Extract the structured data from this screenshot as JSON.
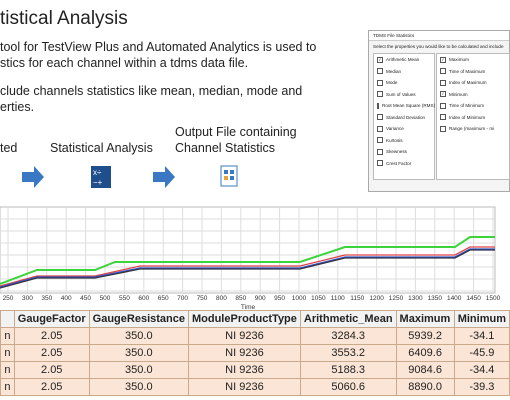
{
  "header": {
    "title": "tistical Analysis"
  },
  "body": [
    "tool for TestView Plus and Automated Analytics is used to",
    "stics for each channel within a tdms data file.",
    "clude channels statistics like mean, median, mode and",
    "erties."
  ],
  "flow": {
    "step1": "ted",
    "step2": "Statistical Analysis",
    "step3": [
      "Output File containing",
      "Channel Statistics"
    ]
  },
  "dialog": {
    "title": "TDMS File Statistics",
    "prompt": "Select the properties you would like to be calculated and include",
    "left": [
      {
        "label": "Arithmetic Mean",
        "checked": true
      },
      {
        "label": "Median",
        "checked": false
      },
      {
        "label": "Mode",
        "checked": false
      },
      {
        "label": "Sum of Values",
        "checked": false
      },
      {
        "label": "Root Mean Square (RMS)",
        "checked": false
      },
      {
        "label": "Standard Deviation",
        "checked": false
      },
      {
        "label": "Variance",
        "checked": false
      },
      {
        "label": "Kurtosis",
        "checked": false
      },
      {
        "label": "Skewness",
        "checked": false
      },
      {
        "label": "Crest Factor",
        "checked": false
      }
    ],
    "right": [
      {
        "label": "Maximum",
        "checked": true
      },
      {
        "label": "Time of Maximum",
        "checked": false
      },
      {
        "label": "Index of Maximum",
        "checked": false
      },
      {
        "label": "Minimum",
        "checked": true
      },
      {
        "label": "Time of Minimum",
        "checked": false
      },
      {
        "label": "Index of Minimum",
        "checked": false
      },
      {
        "label": "Range (maximum - mi",
        "checked": false
      }
    ]
  },
  "chart": {
    "xlabel": "Time",
    "xticks": [
      250,
      300,
      350,
      400,
      450,
      500,
      550,
      600,
      650,
      700,
      750,
      800,
      850,
      900,
      950,
      1000,
      1050,
      1100,
      1150,
      1200,
      1250,
      1300,
      1350,
      1400,
      1450,
      1500
    ]
  },
  "table": {
    "columns": [
      "GaugeFactor",
      "GaugeResistance",
      "ModuleProductType",
      "Arithmetic_Mean",
      "Maximum",
      "Minimum"
    ],
    "rows": [
      [
        "n",
        "2.05",
        "350.0",
        "NI 9236",
        "3284.3",
        "5939.2",
        "-34.1"
      ],
      [
        "n",
        "2.05",
        "350.0",
        "NI 9236",
        "3553.2",
        "6409.6",
        "-45.9"
      ],
      [
        "n",
        "2.05",
        "350.0",
        "NI 9236",
        "5188.3",
        "9084.6",
        "-34.4"
      ],
      [
        "n",
        "2.05",
        "350.0",
        "NI 9236",
        "5060.6",
        "8890.0",
        "-39.3"
      ]
    ]
  }
}
